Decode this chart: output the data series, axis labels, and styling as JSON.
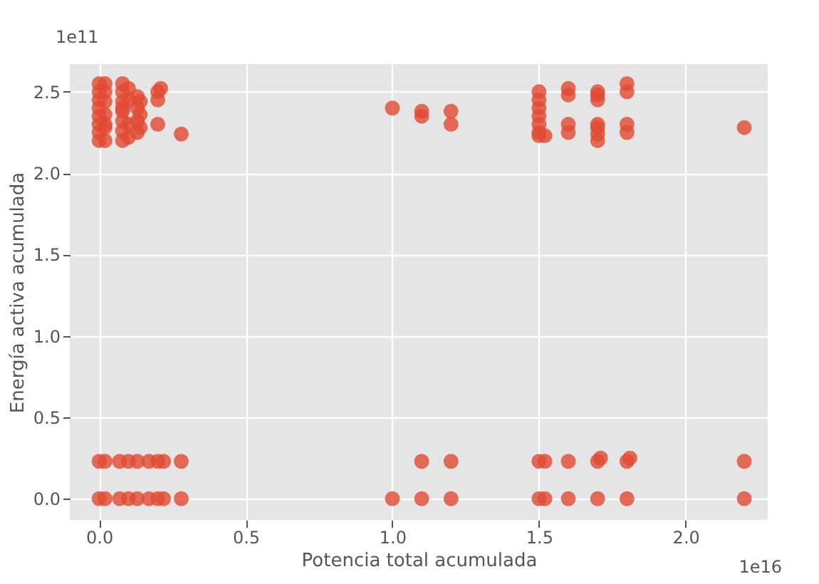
{
  "chart_data": {
    "type": "scatter",
    "xlabel": "Potencia total acumulada",
    "ylabel": "Energía activa acumulada",
    "annotations": [
      "1e11",
      "1e16"
    ],
    "x": [
      0.0,
      0.0,
      0.0,
      0.0,
      0.0,
      0.0,
      0.0,
      0.0,
      0.02,
      0.02,
      0.02,
      0.02,
      0.02,
      0.02,
      0.02,
      0.08,
      0.08,
      0.08,
      0.08,
      0.08,
      0.08,
      0.08,
      0.08,
      0.1,
      0.1,
      0.1,
      0.1,
      0.13,
      0.13,
      0.13,
      0.13,
      0.14,
      0.14,
      0.14,
      0.2,
      0.2,
      0.2,
      0.21,
      0.28,
      1.0,
      1.1,
      1.1,
      1.2,
      1.2,
      1.5,
      1.5,
      1.5,
      1.5,
      1.5,
      1.5,
      1.5,
      1.52,
      1.6,
      1.6,
      1.6,
      1.6,
      1.7,
      1.7,
      1.7,
      1.7,
      1.7,
      1.7,
      1.7,
      1.8,
      1.8,
      1.8,
      1.8,
      2.2,
      0.0,
      0.02,
      0.07,
      0.1,
      0.13,
      0.17,
      0.2,
      0.22,
      0.28,
      1.0,
      1.1,
      1.2,
      1.5,
      1.52,
      1.6,
      1.7,
      1.8,
      2.2,
      0.0,
      0.02,
      0.07,
      0.1,
      0.13,
      0.17,
      0.2,
      0.22,
      0.28,
      1.1,
      1.2,
      1.5,
      1.52,
      1.6,
      1.7,
      1.71,
      1.8,
      1.81,
      2.2
    ],
    "values": [
      2.2,
      2.25,
      2.3,
      2.35,
      2.4,
      2.45,
      2.5,
      2.55,
      2.2,
      2.28,
      2.36,
      2.44,
      2.5,
      2.55,
      2.3,
      2.2,
      2.26,
      2.32,
      2.38,
      2.44,
      2.5,
      2.55,
      2.4,
      2.22,
      2.3,
      2.45,
      2.52,
      2.25,
      2.32,
      2.4,
      2.47,
      2.28,
      2.36,
      2.44,
      2.3,
      2.45,
      2.5,
      2.52,
      2.24,
      2.4,
      2.35,
      2.38,
      2.3,
      2.38,
      2.25,
      2.3,
      2.35,
      2.4,
      2.45,
      2.5,
      2.23,
      2.23,
      2.25,
      2.3,
      2.48,
      2.52,
      2.2,
      2.24,
      2.28,
      2.3,
      2.45,
      2.48,
      2.5,
      2.25,
      2.3,
      2.5,
      2.55,
      2.28,
      0.0,
      0.0,
      0.0,
      0.0,
      0.0,
      0.0,
      0.0,
      0.0,
      0.0,
      0.0,
      0.0,
      0.0,
      0.0,
      0.0,
      0.0,
      0.0,
      0.0,
      0.0,
      0.23,
      0.23,
      0.23,
      0.23,
      0.23,
      0.23,
      0.23,
      0.23,
      0.23,
      0.23,
      0.23,
      0.23,
      0.23,
      0.23,
      0.23,
      0.25,
      0.23,
      0.25,
      0.23
    ],
    "color": "#e24a33",
    "marker": "circle",
    "xlim": [
      -0.1,
      2.28
    ],
    "xticks": [
      {
        "value": 0,
        "label": "0.0"
      },
      0.5,
      {
        "value": 1,
        "label": "1.0"
      },
      1.5,
      {
        "value": 2,
        "label": "2.0"
      }
    ],
    "ylim": [
      -0.13,
      2.67
    ],
    "yticks": [
      {
        "value": 0,
        "label": "0.0"
      },
      0.5,
      {
        "value": 1,
        "label": "1.0"
      },
      1.5,
      {
        "value": 2,
        "label": "2.0"
      },
      2.5
    ],
    "grid": true
  }
}
